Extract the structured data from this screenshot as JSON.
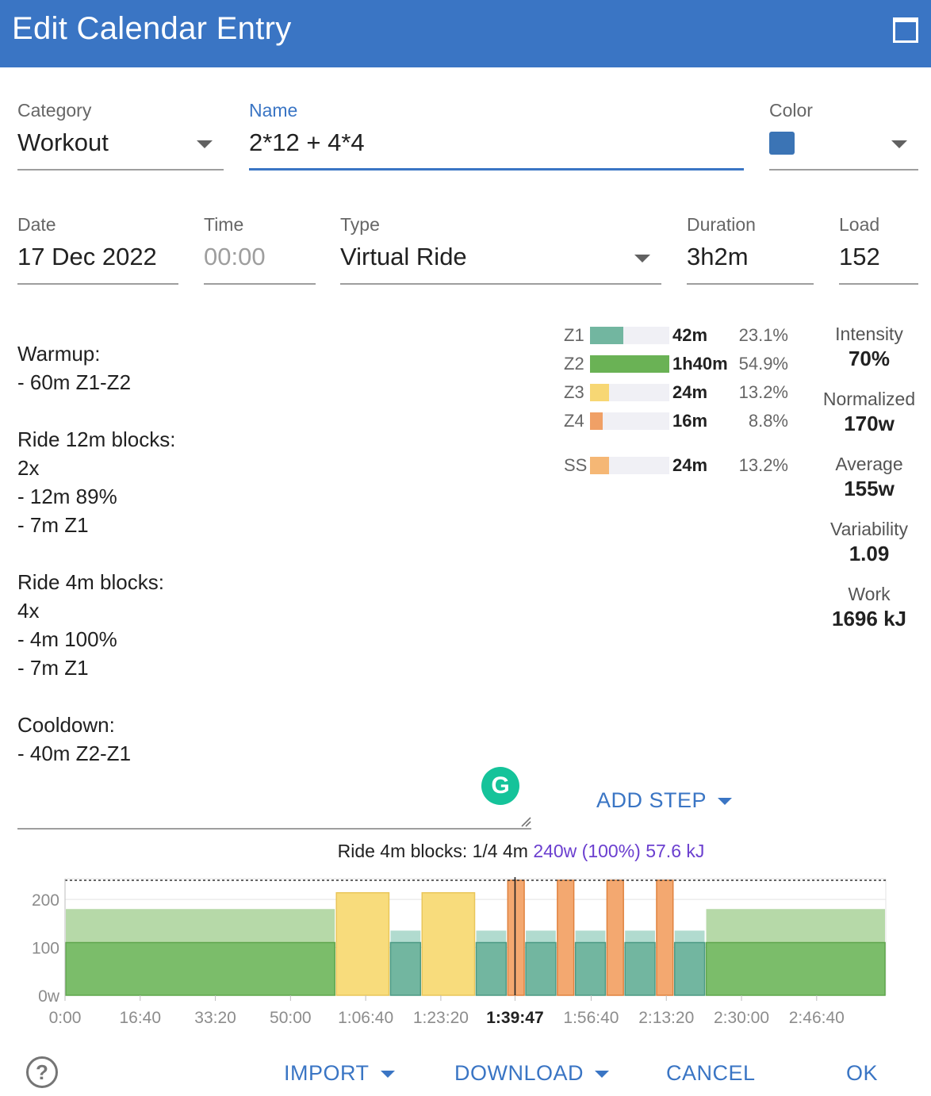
{
  "window": {
    "title": "Edit Calendar Entry"
  },
  "form": {
    "category": {
      "label": "Category",
      "value": "Workout"
    },
    "name": {
      "label": "Name",
      "value": "2*12 + 4*4"
    },
    "color": {
      "label": "Color",
      "value": "#3b74b5"
    },
    "date": {
      "label": "Date",
      "value": "17 Dec 2022"
    },
    "time": {
      "label": "Time",
      "placeholder": "00:00"
    },
    "type": {
      "label": "Type",
      "value": "Virtual Ride"
    },
    "duration": {
      "label": "Duration",
      "value": "3h2m"
    },
    "load": {
      "label": "Load",
      "value": "152"
    }
  },
  "description": "Warmup:\n- 60m Z1-Z2\n\nRide 12m blocks:\n2x\n- 12m 89%\n- 7m Z1\n\nRide 4m blocks:\n4x\n- 4m 100%\n- 7m Z1\n\nCooldown:\n- 40m Z2-Z1",
  "zones": [
    {
      "zone": "Z1",
      "time": "42m",
      "percent": "23.1%",
      "fill": 0.42,
      "color": "#72b6a0"
    },
    {
      "zone": "Z2",
      "time": "1h40m",
      "percent": "54.9%",
      "fill": 1.0,
      "color": "#6ab255"
    },
    {
      "zone": "Z3",
      "time": "24m",
      "percent": "13.2%",
      "fill": 0.24,
      "color": "#f7d774"
    },
    {
      "zone": "Z4",
      "time": "16m",
      "percent": "8.8%",
      "fill": 0.16,
      "color": "#f0a066"
    }
  ],
  "sweetspot": {
    "zone": "SS",
    "time": "24m",
    "percent": "13.2%",
    "fill": 0.24,
    "color": "#f5b775"
  },
  "stats": [
    {
      "label": "Intensity",
      "value": "70%"
    },
    {
      "label": "Normalized",
      "value": "170w"
    },
    {
      "label": "Average",
      "value": "155w"
    },
    {
      "label": "Variability",
      "value": "1.09"
    },
    {
      "label": "Work",
      "value": "1696 kJ"
    }
  ],
  "grammarly_icon": "grammarly-icon",
  "add_step": {
    "label": "ADD STEP"
  },
  "step_info": {
    "text": "Ride 4m blocks: 1/4 4m",
    "highlight": "240w (100%) 57.6 kJ"
  },
  "chart_data": {
    "type": "area",
    "ylim": [
      0,
      240
    ],
    "xlim": [
      0,
      10920
    ],
    "yticks": [
      "0w",
      "100",
      "200"
    ],
    "xticks": [
      "0:00",
      "16:40",
      "33:20",
      "50:00",
      "1:06:40",
      "1:23:20",
      "1:39:47",
      "1:56:40",
      "2:13:20",
      "2:30:00",
      "2:46:40"
    ],
    "cursor_label": "1:39:47",
    "cursor_time": 5987,
    "ftp": 240,
    "segments": [
      {
        "start": 0,
        "end": 3600,
        "low": 110,
        "high": 180,
        "color": "green"
      },
      {
        "start": 3600,
        "end": 4320,
        "low": 214,
        "high": 214,
        "color": "yellow"
      },
      {
        "start": 4320,
        "end": 4740,
        "low": 110,
        "high": 135,
        "color": "teal"
      },
      {
        "start": 4740,
        "end": 5460,
        "low": 214,
        "high": 214,
        "color": "yellow"
      },
      {
        "start": 5460,
        "end": 5880,
        "low": 110,
        "high": 135,
        "color": "teal"
      },
      {
        "start": 5880,
        "end": 6120,
        "low": 240,
        "high": 240,
        "color": "orange"
      },
      {
        "start": 6120,
        "end": 6540,
        "low": 110,
        "high": 135,
        "color": "teal"
      },
      {
        "start": 6540,
        "end": 6780,
        "low": 240,
        "high": 240,
        "color": "orange"
      },
      {
        "start": 6780,
        "end": 7200,
        "low": 110,
        "high": 135,
        "color": "teal"
      },
      {
        "start": 7200,
        "end": 7440,
        "low": 240,
        "high": 240,
        "color": "orange"
      },
      {
        "start": 7440,
        "end": 7860,
        "low": 110,
        "high": 135,
        "color": "teal"
      },
      {
        "start": 7860,
        "end": 8100,
        "low": 240,
        "high": 240,
        "color": "orange"
      },
      {
        "start": 8100,
        "end": 8520,
        "low": 110,
        "high": 135,
        "color": "teal"
      },
      {
        "start": 8520,
        "end": 10920,
        "low": 110,
        "high": 180,
        "color": "green"
      }
    ]
  },
  "footer": {
    "help_icon": "help-circle-icon",
    "import_label": "IMPORT",
    "download_label": "DOWNLOAD",
    "cancel_label": "CANCEL",
    "ok_label": "OK"
  }
}
